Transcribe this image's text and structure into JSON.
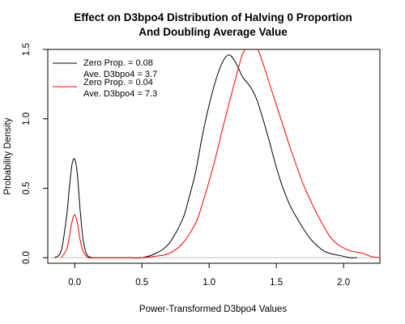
{
  "chart_data": {
    "type": "line",
    "title_line1": "Effect on D3bpo4 Distribution of Halving 0 Proportion",
    "title_line2": "And Doubling Average Value",
    "xlabel": "Power-Transformed D3bpo4 Values",
    "ylabel": "Probability Density",
    "xlim": [
      -0.2,
      2.27
    ],
    "ylim": [
      -0.04,
      1.5
    ],
    "x_ticks": [
      {
        "value": 0.0,
        "label": "0.0"
      },
      {
        "value": 0.5,
        "label": "0.5"
      },
      {
        "value": 1.0,
        "label": "1.0"
      },
      {
        "value": 1.5,
        "label": "1.5"
      },
      {
        "value": 2.0,
        "label": "2.0"
      }
    ],
    "y_ticks": [
      {
        "value": 0.0,
        "label": "0.0"
      },
      {
        "value": 0.5,
        "label": "0.5"
      },
      {
        "value": 1.0,
        "label": "1.0"
      },
      {
        "value": 1.5,
        "label": "1.5"
      }
    ],
    "baseline": {
      "y": 0,
      "color": "#bebebe"
    },
    "legend_position": "top-left",
    "series": [
      {
        "color": "#000000",
        "legend_line1": "Zero Prop. = 0.08",
        "legend_line2": "Ave. D3bpo4 = 3.7",
        "x": [
          -0.15,
          -0.1,
          -0.06,
          -0.04,
          -0.02,
          0.0,
          0.02,
          0.04,
          0.06,
          0.08,
          0.1,
          0.14,
          0.2,
          0.3,
          0.4,
          0.5,
          0.6,
          0.7,
          0.8,
          0.85,
          0.9,
          0.95,
          1.0,
          1.05,
          1.1,
          1.15,
          1.2,
          1.25,
          1.3,
          1.35,
          1.4,
          1.45,
          1.5,
          1.55,
          1.6,
          1.65,
          1.7,
          1.75,
          1.8,
          1.85,
          1.9,
          1.95,
          2.0,
          2.05,
          2.1
        ],
        "y": [
          0.0,
          0.05,
          0.3,
          0.5,
          0.67,
          0.71,
          0.6,
          0.35,
          0.15,
          0.05,
          0.01,
          0.0,
          0.0,
          0.0,
          0.0,
          0.0,
          0.03,
          0.1,
          0.27,
          0.43,
          0.62,
          0.88,
          1.1,
          1.28,
          1.41,
          1.46,
          1.4,
          1.3,
          1.24,
          1.15,
          1.0,
          0.83,
          0.65,
          0.5,
          0.38,
          0.29,
          0.21,
          0.14,
          0.09,
          0.05,
          0.03,
          0.02,
          0.01,
          0.0,
          0.0
        ]
      },
      {
        "color": "#ff0000",
        "legend_line1": "Zero Prop. = 0.04",
        "legend_line2": "Ave. D3bpo4 = 7.3",
        "x": [
          -0.1,
          -0.06,
          -0.04,
          -0.02,
          0.0,
          0.02,
          0.04,
          0.06,
          0.08,
          0.1,
          0.14,
          0.2,
          0.3,
          0.4,
          0.5,
          0.6,
          0.7,
          0.8,
          0.9,
          0.95,
          1.0,
          1.05,
          1.1,
          1.15,
          1.2,
          1.25,
          1.3,
          1.35,
          1.4,
          1.45,
          1.5,
          1.55,
          1.6,
          1.65,
          1.7,
          1.75,
          1.8,
          1.85,
          1.9,
          1.95,
          2.0,
          2.05,
          2.1,
          2.15,
          2.2,
          2.27
        ],
        "y": [
          0.0,
          0.06,
          0.15,
          0.26,
          0.31,
          0.25,
          0.13,
          0.05,
          0.02,
          0.0,
          0.0,
          0.0,
          0.0,
          0.0,
          0.0,
          0.01,
          0.03,
          0.1,
          0.25,
          0.39,
          0.55,
          0.73,
          0.93,
          1.12,
          1.3,
          1.47,
          1.52,
          1.52,
          1.4,
          1.25,
          1.1,
          0.95,
          0.8,
          0.66,
          0.53,
          0.42,
          0.32,
          0.23,
          0.15,
          0.1,
          0.07,
          0.05,
          0.04,
          0.03,
          0.01,
          0.0
        ]
      }
    ]
  }
}
